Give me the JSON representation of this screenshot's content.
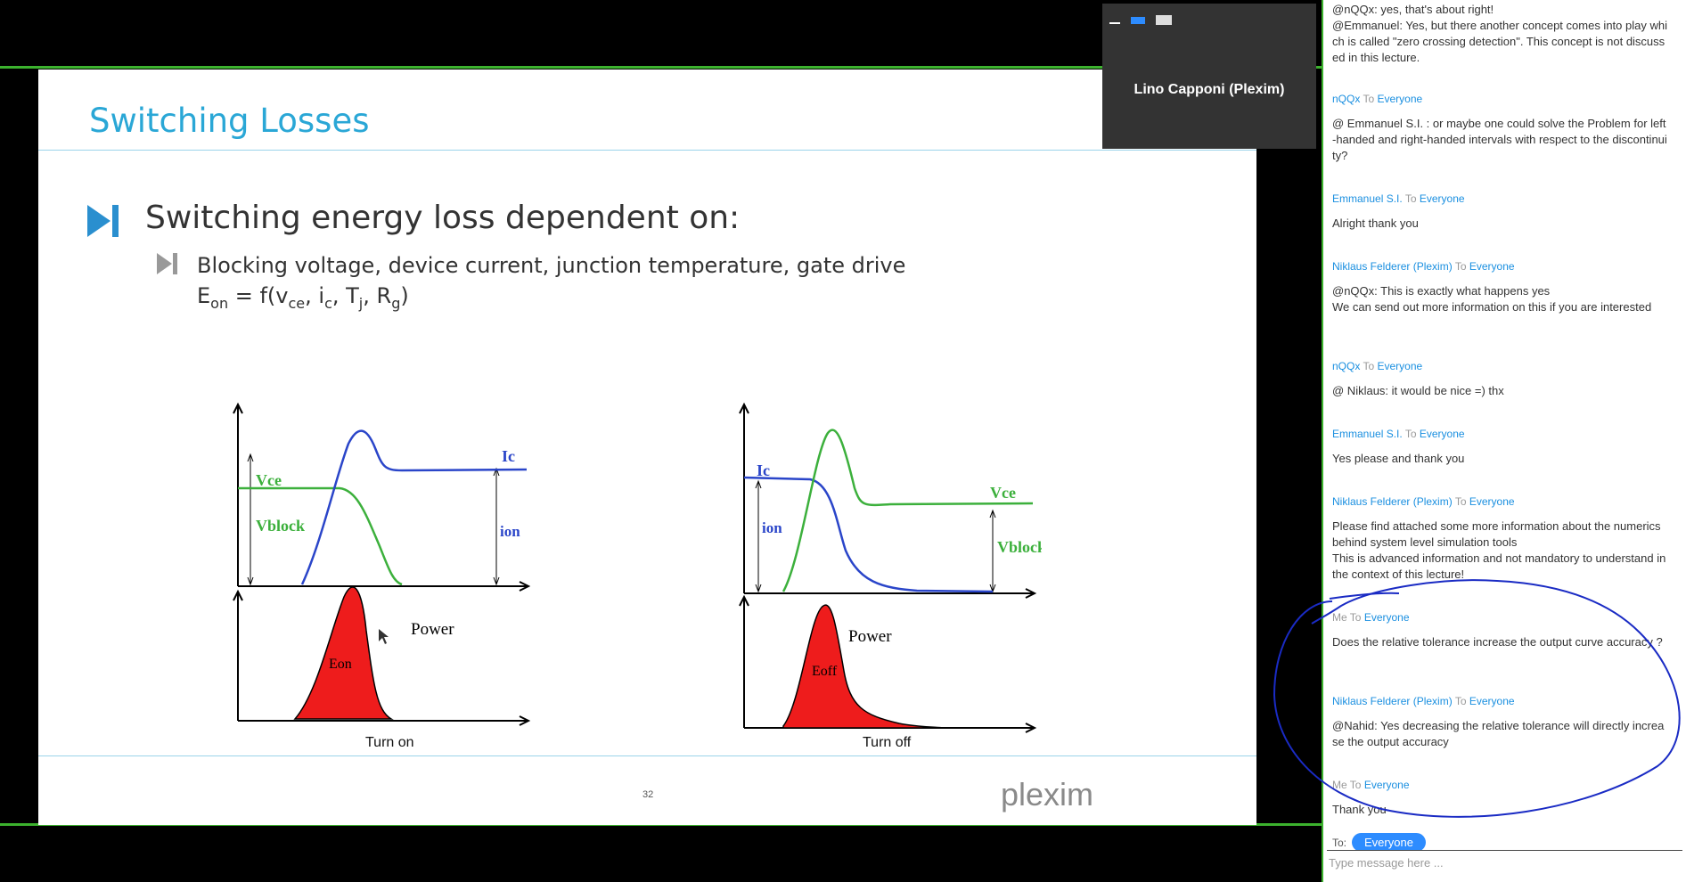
{
  "video": {
    "presenter_name": "Lino Capponi (Plexim)"
  },
  "slide": {
    "title": "Switching Losses",
    "bullet1": "Switching energy loss dependent on:",
    "bullet2": "Blocking voltage, device current, junction temperature, gate drive",
    "formula": {
      "lhs": "E",
      "lhs_sub": "on",
      "eq": " = f(v",
      "vce_sub": "ce",
      "ic": ", i",
      "ic_sub": "c",
      "tj": ", T",
      "tj_sub": "j",
      "rg": ", R",
      "rg_sub": "g",
      "close": ")"
    },
    "fig_on": {
      "vce": "Vce",
      "ic": "Ic",
      "vblock": "Vblock",
      "ion": "ion",
      "power": "Power",
      "energy": "Eon"
    },
    "fig_off": {
      "ic": "Ic",
      "vce": "Vce",
      "ion": "ion",
      "vblock": "Vblock",
      "power": "Power",
      "energy": "Eoff"
    },
    "caption_on": "Turn on",
    "caption_off": "Turn off",
    "page_number": "32",
    "logo_text": "plexim"
  },
  "chat": {
    "messages": [
      {
        "text": "@nQQx: yes, that's about right!\n@Emmanuel: Yes, but there another concept comes into play which is called \"zero crossing detection\". This concept is not discussed in this lecture."
      },
      {
        "from": "nQQx",
        "to": "Everyone",
        "body": "@ Emmanuel S.I. : or maybe one could solve the Problem for left-handed and right-handed intervals with respect to the discontinuity?"
      },
      {
        "from": "Emmanuel S.I.",
        "to": "Everyone",
        "body": "Alright thank you"
      },
      {
        "from": "Niklaus Felderer (Plexim)",
        "to": "Everyone",
        "body": "@nQQx: This is exactly what happens yes\nWe can send out more information on this if you are interested"
      },
      {
        "from": "nQQx",
        "to": "Everyone",
        "body": "@ Niklaus: it would be nice =) thx"
      },
      {
        "from": "Emmanuel S.I.",
        "to": "Everyone",
        "body": "Yes please and thank you"
      },
      {
        "from": "Niklaus Felderer (Plexim)",
        "to": "Everyone",
        "body": "Please find attached some more information about the numerics behind system level simulation tools\nThis is advanced information and not mandatory to understand in the context of this lecture!"
      },
      {
        "from": "Me",
        "to": "Everyone",
        "body": "Does the relative tolerance increase the output curve accuracy ?"
      },
      {
        "from": "Niklaus Felderer (Plexim)",
        "to": "Everyone",
        "body": "@Nahid: Yes decreasing the relative tolerance will directly increase the output accuracy"
      },
      {
        "from": "Me",
        "to": "Everyone",
        "body": "Thank you"
      }
    ],
    "to_word": "To",
    "to_label": "To:",
    "recipient": "Everyone",
    "input_placeholder": "Type message here ..."
  }
}
